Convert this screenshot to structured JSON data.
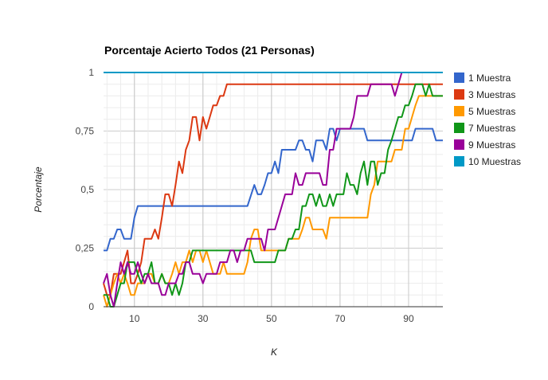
{
  "chart_data": {
    "type": "line",
    "title": "Porcentaje Acierto Todos (21 Personas)",
    "xlabel": "K",
    "ylabel": "Porcentaje",
    "xlim": [
      1,
      100
    ],
    "ylim": [
      0,
      1
    ],
    "x_ticks": [
      10,
      30,
      50,
      70,
      90
    ],
    "x_tick_labels": [
      "10",
      "30",
      "50",
      "70",
      "90"
    ],
    "y_ticks": [
      0,
      0.25,
      0.5,
      0.75,
      1
    ],
    "y_tick_labels": [
      "0",
      "0,25",
      "0,5",
      "0,75",
      "1"
    ],
    "grid": true,
    "legend_position": "right",
    "series": [
      {
        "name": "1 Muestra",
        "color": "#3366cc",
        "points": [
          [
            1,
            0.24
          ],
          [
            2,
            0.24
          ],
          [
            3,
            0.29
          ],
          [
            4,
            0.29
          ],
          [
            5,
            0.33
          ],
          [
            6,
            0.33
          ],
          [
            7,
            0.29
          ],
          [
            8,
            0.29
          ],
          [
            9,
            0.29
          ],
          [
            10,
            0.38
          ],
          [
            11,
            0.43
          ],
          [
            43,
            0.43
          ],
          [
            45,
            0.52
          ],
          [
            46,
            0.48
          ],
          [
            47,
            0.48
          ],
          [
            48,
            0.52
          ],
          [
            49,
            0.57
          ],
          [
            50,
            0.57
          ],
          [
            51,
            0.62
          ],
          [
            52,
            0.57
          ],
          [
            53,
            0.67
          ],
          [
            57,
            0.67
          ],
          [
            58,
            0.71
          ],
          [
            59,
            0.71
          ],
          [
            60,
            0.67
          ],
          [
            61,
            0.67
          ],
          [
            62,
            0.62
          ],
          [
            63,
            0.71
          ],
          [
            65,
            0.71
          ],
          [
            66,
            0.67
          ],
          [
            67,
            0.76
          ],
          [
            68,
            0.76
          ],
          [
            69,
            0.71
          ],
          [
            70,
            0.76
          ],
          [
            77,
            0.76
          ],
          [
            78,
            0.71
          ],
          [
            91,
            0.71
          ],
          [
            92,
            0.76
          ],
          [
            97,
            0.76
          ],
          [
            98,
            0.71
          ],
          [
            100,
            0.71
          ]
        ]
      },
      {
        "name": "3 Muestras",
        "color": "#dc3912",
        "points": [
          [
            1,
            0.1
          ],
          [
            2,
            0.05
          ],
          [
            3,
            0.05
          ],
          [
            4,
            0.14
          ],
          [
            5,
            0.14
          ],
          [
            6,
            0.14
          ],
          [
            7,
            0.19
          ],
          [
            8,
            0.24
          ],
          [
            9,
            0.1
          ],
          [
            10,
            0.1
          ],
          [
            11,
            0.14
          ],
          [
            12,
            0.19
          ],
          [
            13,
            0.29
          ],
          [
            15,
            0.29
          ],
          [
            16,
            0.33
          ],
          [
            17,
            0.29
          ],
          [
            18,
            0.38
          ],
          [
            19,
            0.48
          ],
          [
            20,
            0.48
          ],
          [
            21,
            0.43
          ],
          [
            22,
            0.52
          ],
          [
            23,
            0.62
          ],
          [
            24,
            0.57
          ],
          [
            25,
            0.67
          ],
          [
            26,
            0.71
          ],
          [
            27,
            0.81
          ],
          [
            28,
            0.81
          ],
          [
            29,
            0.71
          ],
          [
            30,
            0.81
          ],
          [
            31,
            0.76
          ],
          [
            32,
            0.81
          ],
          [
            33,
            0.86
          ],
          [
            34,
            0.86
          ],
          [
            35,
            0.9
          ],
          [
            36,
            0.9
          ],
          [
            37,
            0.95
          ],
          [
            100,
            0.95
          ]
        ]
      },
      {
        "name": "5 Muestras",
        "color": "#ff9900",
        "points": [
          [
            1,
            0.05
          ],
          [
            2,
            0
          ],
          [
            3,
            0.05
          ],
          [
            4,
            0.1
          ],
          [
            5,
            0.14
          ],
          [
            6,
            0.1
          ],
          [
            7,
            0.14
          ],
          [
            8,
            0.1
          ],
          [
            9,
            0.05
          ],
          [
            10,
            0.05
          ],
          [
            11,
            0.1
          ],
          [
            12,
            0.1
          ],
          [
            13,
            0.1
          ],
          [
            14,
            0.14
          ],
          [
            15,
            0.14
          ],
          [
            16,
            0.1
          ],
          [
            17,
            0.1
          ],
          [
            18,
            0.14
          ],
          [
            19,
            0.1
          ],
          [
            20,
            0.1
          ],
          [
            21,
            0.14
          ],
          [
            22,
            0.19
          ],
          [
            23,
            0.14
          ],
          [
            24,
            0.19
          ],
          [
            25,
            0.19
          ],
          [
            26,
            0.24
          ],
          [
            27,
            0.19
          ],
          [
            28,
            0.24
          ],
          [
            29,
            0.24
          ],
          [
            30,
            0.19
          ],
          [
            31,
            0.24
          ],
          [
            32,
            0.19
          ],
          [
            33,
            0.14
          ],
          [
            35,
            0.14
          ],
          [
            36,
            0.19
          ],
          [
            37,
            0.14
          ],
          [
            42,
            0.14
          ],
          [
            43,
            0.19
          ],
          [
            44,
            0.29
          ],
          [
            45,
            0.33
          ],
          [
            46,
            0.33
          ],
          [
            47,
            0.24
          ],
          [
            48,
            0.24
          ],
          [
            49,
            0.24
          ],
          [
            50,
            0.24
          ],
          [
            54,
            0.24
          ],
          [
            55,
            0.29
          ],
          [
            58,
            0.29
          ],
          [
            59,
            0.33
          ],
          [
            60,
            0.38
          ],
          [
            61,
            0.38
          ],
          [
            62,
            0.33
          ],
          [
            65,
            0.33
          ],
          [
            66,
            0.29
          ],
          [
            67,
            0.38
          ],
          [
            78,
            0.38
          ],
          [
            79,
            0.48
          ],
          [
            80,
            0.52
          ],
          [
            81,
            0.62
          ],
          [
            85,
            0.62
          ],
          [
            86,
            0.67
          ],
          [
            87,
            0.67
          ],
          [
            88,
            0.67
          ],
          [
            89,
            0.76
          ],
          [
            90,
            0.76
          ],
          [
            91,
            0.81
          ],
          [
            92,
            0.86
          ],
          [
            93,
            0.9
          ],
          [
            100,
            0.9
          ]
        ]
      },
      {
        "name": "7 Muestras",
        "color": "#109618",
        "points": [
          [
            1,
            0.05
          ],
          [
            2,
            0.05
          ],
          [
            3,
            0
          ],
          [
            4,
            0
          ],
          [
            5,
            0.05
          ],
          [
            6,
            0.1
          ],
          [
            7,
            0.1
          ],
          [
            8,
            0.19
          ],
          [
            9,
            0.19
          ],
          [
            10,
            0.19
          ],
          [
            11,
            0.14
          ],
          [
            12,
            0.1
          ],
          [
            13,
            0.14
          ],
          [
            14,
            0.14
          ],
          [
            15,
            0.19
          ],
          [
            16,
            0.1
          ],
          [
            17,
            0.1
          ],
          [
            18,
            0.14
          ],
          [
            19,
            0.1
          ],
          [
            20,
            0.1
          ],
          [
            21,
            0.05
          ],
          [
            22,
            0.1
          ],
          [
            23,
            0.05
          ],
          [
            24,
            0.1
          ],
          [
            25,
            0.19
          ],
          [
            26,
            0.19
          ],
          [
            27,
            0.24
          ],
          [
            43,
            0.24
          ],
          [
            44,
            0.24
          ],
          [
            45,
            0.19
          ],
          [
            51,
            0.19
          ],
          [
            52,
            0.24
          ],
          [
            53,
            0.24
          ],
          [
            54,
            0.24
          ],
          [
            55,
            0.29
          ],
          [
            56,
            0.29
          ],
          [
            57,
            0.33
          ],
          [
            58,
            0.33
          ],
          [
            59,
            0.43
          ],
          [
            60,
            0.43
          ],
          [
            61,
            0.48
          ],
          [
            62,
            0.48
          ],
          [
            63,
            0.43
          ],
          [
            64,
            0.48
          ],
          [
            65,
            0.43
          ],
          [
            66,
            0.43
          ],
          [
            67,
            0.48
          ],
          [
            68,
            0.43
          ],
          [
            69,
            0.48
          ],
          [
            70,
            0.48
          ],
          [
            71,
            0.48
          ],
          [
            72,
            0.57
          ],
          [
            73,
            0.52
          ],
          [
            74,
            0.52
          ],
          [
            75,
            0.48
          ],
          [
            76,
            0.57
          ],
          [
            77,
            0.62
          ],
          [
            78,
            0.52
          ],
          [
            79,
            0.62
          ],
          [
            80,
            0.62
          ],
          [
            81,
            0.52
          ],
          [
            82,
            0.57
          ],
          [
            83,
            0.57
          ],
          [
            84,
            0.67
          ],
          [
            85,
            0.71
          ],
          [
            86,
            0.76
          ],
          [
            87,
            0.81
          ],
          [
            88,
            0.81
          ],
          [
            89,
            0.86
          ],
          [
            90,
            0.86
          ],
          [
            91,
            0.9
          ],
          [
            92,
            0.95
          ],
          [
            93,
            0.95
          ],
          [
            94,
            0.95
          ],
          [
            95,
            0.9
          ],
          [
            96,
            0.95
          ],
          [
            97,
            0.9
          ],
          [
            100,
            0.9
          ]
        ]
      },
      {
        "name": "9 Muestras",
        "color": "#990099",
        "points": [
          [
            1,
            0.1
          ],
          [
            2,
            0.14
          ],
          [
            3,
            0.05
          ],
          [
            4,
            0
          ],
          [
            5,
            0.1
          ],
          [
            6,
            0.19
          ],
          [
            7,
            0.14
          ],
          [
            8,
            0.19
          ],
          [
            9,
            0.14
          ],
          [
            10,
            0.14
          ],
          [
            11,
            0.19
          ],
          [
            12,
            0.14
          ],
          [
            13,
            0.1
          ],
          [
            14,
            0.14
          ],
          [
            15,
            0.1
          ],
          [
            16,
            0.1
          ],
          [
            17,
            0.1
          ],
          [
            18,
            0.05
          ],
          [
            19,
            0.05
          ],
          [
            20,
            0.1
          ],
          [
            21,
            0.1
          ],
          [
            22,
            0.1
          ],
          [
            23,
            0.14
          ],
          [
            24,
            0.14
          ],
          [
            25,
            0.19
          ],
          [
            26,
            0.19
          ],
          [
            27,
            0.14
          ],
          [
            28,
            0.14
          ],
          [
            29,
            0.14
          ],
          [
            30,
            0.1
          ],
          [
            31,
            0.14
          ],
          [
            32,
            0.14
          ],
          [
            33,
            0.14
          ],
          [
            34,
            0.14
          ],
          [
            35,
            0.19
          ],
          [
            36,
            0.19
          ],
          [
            37,
            0.19
          ],
          [
            38,
            0.24
          ],
          [
            39,
            0.24
          ],
          [
            40,
            0.19
          ],
          [
            41,
            0.24
          ],
          [
            42,
            0.24
          ],
          [
            43,
            0.29
          ],
          [
            44,
            0.29
          ],
          [
            45,
            0.29
          ],
          [
            46,
            0.29
          ],
          [
            47,
            0.29
          ],
          [
            48,
            0.24
          ],
          [
            49,
            0.33
          ],
          [
            50,
            0.33
          ],
          [
            51,
            0.33
          ],
          [
            52,
            0.38
          ],
          [
            53,
            0.43
          ],
          [
            54,
            0.48
          ],
          [
            55,
            0.48
          ],
          [
            56,
            0.48
          ],
          [
            57,
            0.57
          ],
          [
            58,
            0.52
          ],
          [
            59,
            0.52
          ],
          [
            60,
            0.57
          ],
          [
            61,
            0.57
          ],
          [
            62,
            0.57
          ],
          [
            63,
            0.57
          ],
          [
            64,
            0.57
          ],
          [
            65,
            0.52
          ],
          [
            66,
            0.52
          ],
          [
            67,
            0.67
          ],
          [
            68,
            0.67
          ],
          [
            69,
            0.76
          ],
          [
            70,
            0.76
          ],
          [
            71,
            0.76
          ],
          [
            72,
            0.76
          ],
          [
            73,
            0.76
          ],
          [
            74,
            0.81
          ],
          [
            75,
            0.9
          ],
          [
            76,
            0.9
          ],
          [
            77,
            0.9
          ],
          [
            78,
            0.9
          ],
          [
            79,
            0.95
          ],
          [
            80,
            0.95
          ],
          [
            81,
            0.95
          ],
          [
            82,
            0.95
          ],
          [
            83,
            0.95
          ],
          [
            84,
            0.95
          ],
          [
            85,
            0.95
          ],
          [
            86,
            0.9
          ],
          [
            87,
            0.95
          ],
          [
            88,
            1.0
          ],
          [
            100,
            1.0
          ]
        ]
      },
      {
        "name": "10 Muestras",
        "color": "#0099c6",
        "points": [
          [
            1,
            1
          ],
          [
            100,
            1
          ]
        ]
      }
    ]
  }
}
